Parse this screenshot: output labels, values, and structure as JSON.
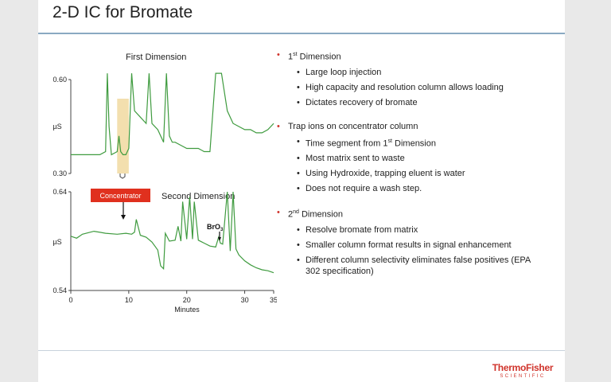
{
  "slide": {
    "title": "2-D IC for Bromate"
  },
  "panel_top": {
    "title": "First Dimension",
    "y_label": "µS",
    "y_ticks": [
      "0.60",
      "0.30"
    ]
  },
  "panel_bottom": {
    "title": "Second Dimension",
    "y_label": "µS",
    "y_ticks": [
      "0.64",
      "0.54"
    ],
    "x_ticks": [
      "0",
      "10",
      "20",
      "30",
      "35"
    ],
    "x_label": "Minutes",
    "concentrator_label": "Concentrator",
    "peak_label": "BrO",
    "peak_label_sub": "3"
  },
  "bullets": [
    {
      "head": "1",
      "head_sup": "st",
      "head_rest": " Dimension",
      "items": [
        "Large loop injection",
        "High capacity and resolution column allows loading",
        "Dictates recovery of bromate"
      ]
    },
    {
      "head": "Trap ions on concentrator column",
      "items": [
        "Time segment from 1st Dimension",
        "Most matrix sent to waste",
        "Using Hydroxide, trapping eluent is water",
        "Does not require a wash step."
      ]
    },
    {
      "head": "2",
      "head_sup": "nd",
      "head_rest": " Dimension",
      "items": [
        "Resolve bromate from matrix",
        "Smaller column format results in signal enhancement",
        "Different column selectivity eliminates false positives (EPA 302 specification)"
      ]
    }
  ],
  "logo": {
    "main": "ThermoFisher",
    "sub": "SCIENTIFIC"
  },
  "colors": {
    "trace": "#3f9b3f",
    "highlight": "#f3dfae",
    "accent": "#e0301e",
    "rule": "#8aa9c2"
  },
  "chart_data": [
    {
      "type": "line",
      "title": "First Dimension",
      "ylabel": "µS",
      "ylim": [
        0.3,
        0.6
      ],
      "y_ticks": [
        0.3,
        0.6
      ],
      "x_range": [
        0,
        35
      ],
      "highlight_x": [
        8,
        10
      ],
      "series": [
        {
          "x": [
            0,
            2,
            4,
            5,
            6,
            6.3,
            6.6,
            7,
            8,
            8.3,
            8.6,
            9,
            9.5,
            10,
            10.5,
            11,
            12,
            13,
            13.5,
            14,
            15,
            16,
            16.5,
            17,
            17.5,
            18,
            19,
            20,
            21,
            22,
            23,
            24,
            25,
            26,
            27,
            28,
            29,
            30,
            31,
            32,
            33,
            34,
            35
          ],
          "y": [
            0.36,
            0.36,
            0.36,
            0.36,
            0.37,
            0.62,
            0.45,
            0.36,
            0.37,
            0.42,
            0.37,
            0.36,
            0.36,
            0.38,
            0.62,
            0.5,
            0.48,
            0.46,
            0.62,
            0.46,
            0.44,
            0.4,
            0.62,
            0.42,
            0.4,
            0.4,
            0.39,
            0.38,
            0.38,
            0.38,
            0.37,
            0.37,
            0.62,
            0.62,
            0.5,
            0.46,
            0.45,
            0.44,
            0.44,
            0.43,
            0.43,
            0.44,
            0.46
          ]
        }
      ]
    },
    {
      "type": "line",
      "title": "Second Dimension",
      "xlabel": "Minutes",
      "ylabel": "µS",
      "ylim": [
        0.54,
        0.64
      ],
      "xlim": [
        0,
        35
      ],
      "x_ticks": [
        0,
        10,
        20,
        30,
        35
      ],
      "y_ticks": [
        0.54,
        0.64
      ],
      "annotations": [
        "Concentrator",
        "BrO3"
      ],
      "series": [
        {
          "x": [
            0,
            1,
            2,
            4,
            6,
            8,
            9.5,
            10.5,
            11,
            11.3,
            12,
            13,
            14,
            15,
            15.5,
            16,
            16.3,
            17,
            18,
            18.5,
            19,
            19.3,
            20,
            20.5,
            21,
            21.3,
            22,
            23,
            24,
            25,
            25.5,
            25.8,
            26.2,
            27,
            27.5,
            28,
            28.5,
            29,
            30,
            31,
            32,
            33,
            34,
            35
          ],
          "y": [
            0.595,
            0.593,
            0.597,
            0.6,
            0.598,
            0.597,
            0.598,
            0.597,
            0.599,
            0.612,
            0.596,
            0.594,
            0.589,
            0.581,
            0.565,
            0.562,
            0.598,
            0.59,
            0.591,
            0.605,
            0.59,
            0.63,
            0.592,
            0.635,
            0.592,
            0.63,
            0.591,
            0.588,
            0.585,
            0.584,
            0.594,
            0.588,
            0.587,
            0.64,
            0.58,
            0.64,
            0.582,
            0.576,
            0.57,
            0.566,
            0.563,
            0.561,
            0.56,
            0.558
          ]
        }
      ]
    }
  ]
}
